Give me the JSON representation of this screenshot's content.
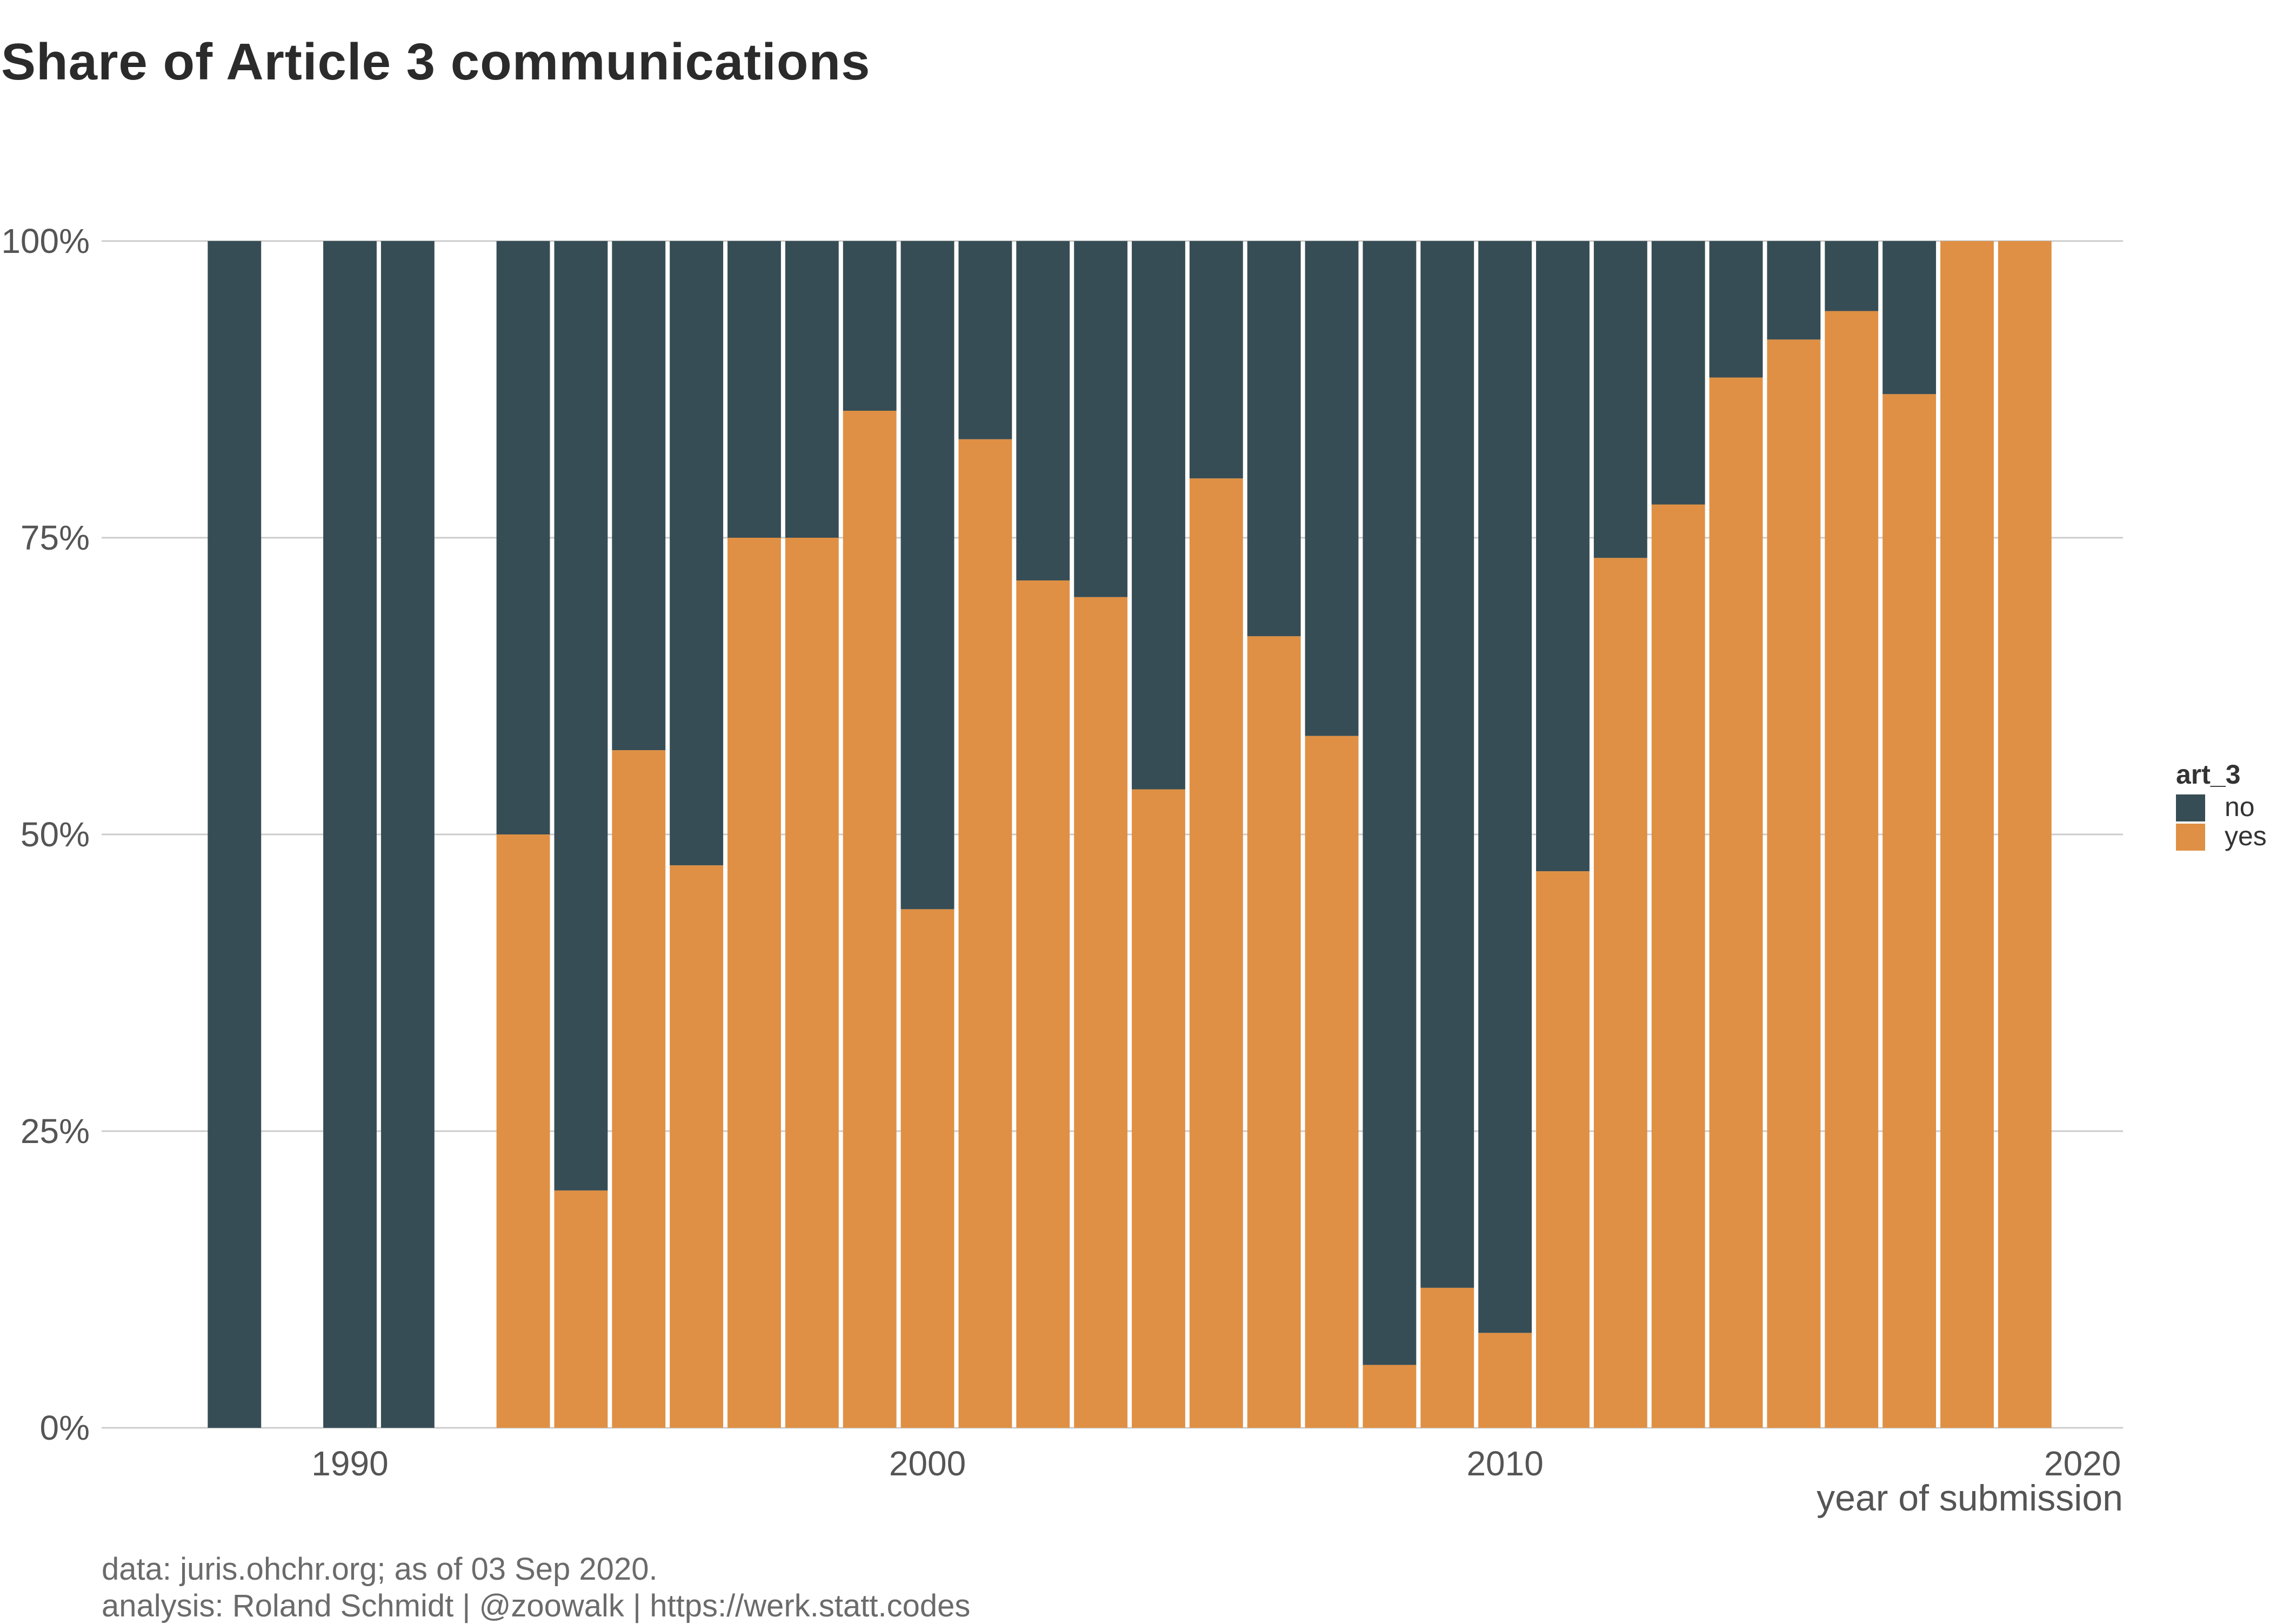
{
  "chart_data": {
    "type": "bar",
    "stacked": true,
    "title": "Share of Article 3 communications",
    "xlabel": "year of submission",
    "ylabel": "",
    "x_ticks": [
      1990,
      2000,
      2010,
      2020
    ],
    "y_ticks": [
      "0%",
      "25%",
      "50%",
      "75%",
      "100%"
    ],
    "xlim": [
      1985.7,
      2020.7
    ],
    "ylim": [
      0,
      1
    ],
    "years": [
      1988,
      1990,
      1991,
      1993,
      1994,
      1995,
      1996,
      1997,
      1998,
      1999,
      2000,
      2001,
      2002,
      2003,
      2004,
      2005,
      2006,
      2007,
      2008,
      2009,
      2010,
      2011,
      2012,
      2013,
      2014,
      2015,
      2016,
      2017,
      2018,
      2019
    ],
    "series": [
      {
        "name": "no",
        "color": "#374d55",
        "values": [
          1,
          1,
          1,
          0.5,
          0.8,
          0.429,
          0.526,
          0.25,
          0.25,
          0.143,
          0.563,
          0.167,
          0.286,
          0.3,
          0.462,
          0.2,
          0.333,
          0.417,
          0.947,
          0.882,
          0.92,
          0.531,
          0.267,
          0.222,
          0.115,
          0.083,
          0.059,
          0.129,
          0,
          0
        ]
      },
      {
        "name": "yes",
        "color": "#df9044",
        "values": [
          0,
          0,
          0,
          0.5,
          0.2,
          0.571,
          0.474,
          0.75,
          0.75,
          0.857,
          0.437,
          0.833,
          0.714,
          0.7,
          0.538,
          0.8,
          0.667,
          0.583,
          0.053,
          0.118,
          0.08,
          0.469,
          0.733,
          0.778,
          0.885,
          0.917,
          0.941,
          0.871,
          1,
          1
        ]
      }
    ],
    "legend": {
      "title": "art_3",
      "position": "right"
    },
    "grid": true
  },
  "caption": {
    "line1": "data: juris.ohchr.org; as of 03 Sep 2020.",
    "line2": "analysis: Roland Schmidt | @zoowalk | https://werk.statt.codes"
  }
}
